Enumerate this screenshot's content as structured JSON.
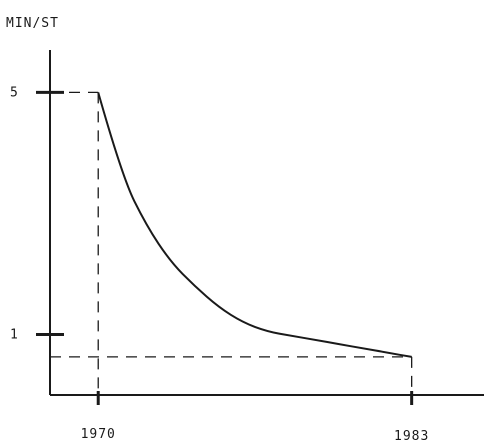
{
  "chart_data": {
    "type": "line",
    "ylabel": "MIN/ST",
    "xlabel": "",
    "x_ticks": [
      "1970",
      "1983"
    ],
    "y_ticks": [
      "5",
      "1"
    ],
    "series": [
      {
        "x": [
          1970,
          1971,
          1972,
          1973,
          1974,
          1975,
          1976,
          1977,
          1978,
          1979,
          1980,
          1981,
          1982,
          1983
        ],
        "values": [
          5.0,
          3.6,
          2.8,
          2.2,
          1.8,
          1.45,
          1.2,
          1.05,
          0.98,
          0.91,
          0.84,
          0.77,
          0.7,
          0.63
        ]
      }
    ],
    "xlim": [
      1968,
      1986
    ],
    "ylim": [
      0,
      5.7
    ],
    "grid": false,
    "legend": "none"
  }
}
